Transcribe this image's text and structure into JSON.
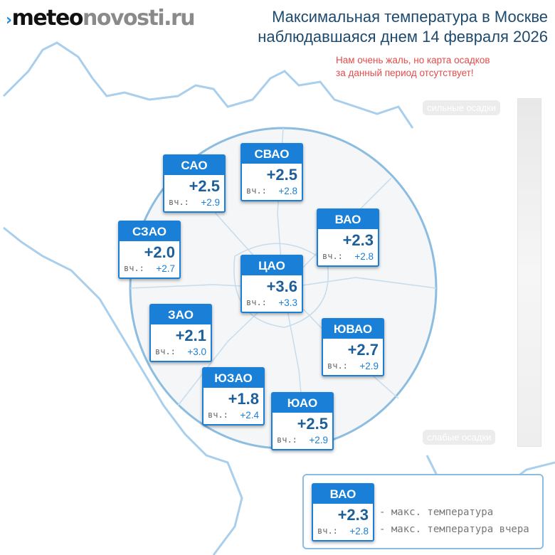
{
  "logo": {
    "part1": "meteo",
    "part2": "novosti.ru"
  },
  "title": {
    "line1": "Максимальная температура в Москве",
    "line2": "наблюдавшаяся днем 14 февраля 2026"
  },
  "notice": {
    "line1": "Нам очень жаль, но карта осадков",
    "line2": "за данный период отсутствует!"
  },
  "precip_scale": {
    "top": "сильные осадки",
    "bottom": "слабые осадки"
  },
  "districts": [
    {
      "name": "САО",
      "temp": "+2.5",
      "yesterday_label": "вч.:",
      "yesterday": "+2.9"
    },
    {
      "name": "СВАО",
      "temp": "+2.5",
      "yesterday_label": "вч.:",
      "yesterday": "+2.8"
    },
    {
      "name": "ВАО",
      "temp": "+2.3",
      "yesterday_label": "вч.:",
      "yesterday": "+2.8"
    },
    {
      "name": "СЗАО",
      "temp": "+2.0",
      "yesterday_label": "вч.:",
      "yesterday": "+2.7"
    },
    {
      "name": "ЦАО",
      "temp": "+3.6",
      "yesterday_label": "вч.:",
      "yesterday": "+3.3"
    },
    {
      "name": "ЗАО",
      "temp": "+2.1",
      "yesterday_label": "вч.:",
      "yesterday": "+3.0"
    },
    {
      "name": "ЮВАО",
      "temp": "+2.7",
      "yesterday_label": "вч.:",
      "yesterday": "+2.9"
    },
    {
      "name": "ЮЗАО",
      "temp": "+1.8",
      "yesterday_label": "вч.:",
      "yesterday": "+2.4"
    },
    {
      "name": "ЮАО",
      "temp": "+2.5",
      "yesterday_label": "вч.:",
      "yesterday": "+2.9"
    }
  ],
  "legend": {
    "name": "ВАО",
    "temp": "+2.3",
    "yesterday_label": "вч.:",
    "yesterday": "+2.8",
    "temp_desc": "- макс. температура",
    "yesterday_desc": "- макс. температура вчера"
  },
  "colors": {
    "accent": "#1a7fd6",
    "title": "#1d4a6e",
    "notice": "#e34b4b",
    "map_line": "#8cbde0"
  }
}
